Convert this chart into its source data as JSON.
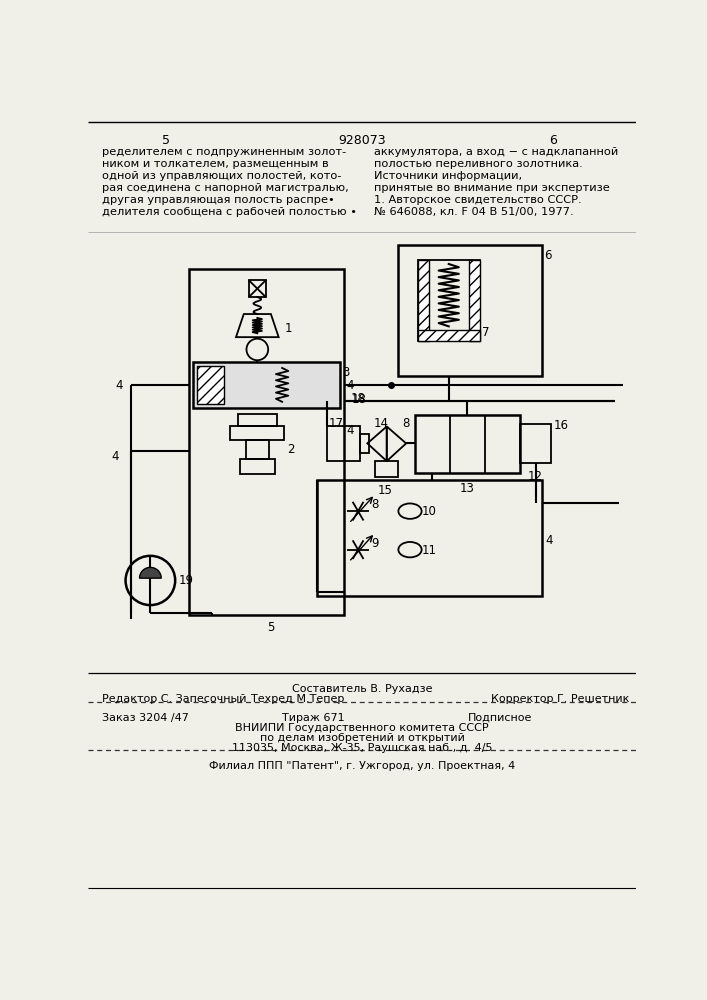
{
  "bg_color": "#f0efe8",
  "page_num_left": "5",
  "page_num_center": "928073",
  "page_num_right": "6",
  "col1": [
    "ределителем с подпружиненным золот-",
    "ником и толкателем, размещенным в",
    "одной из управляющих полостей, кото-",
    "рая соединена с напорной магистралью,",
    "другая управляющая полость распре•",
    "делителя сообщена с рабочей полостью •"
  ],
  "col2": [
    "аккумулятора, а вход − с надклапанной",
    "полостью переливного золотника.",
    "Источники информации,",
    "принятые во внимание при экспертизе",
    "1. Авторское свидетельство СССР.",
    "№ 646088, кл. F 04 B 51/00, 1977."
  ],
  "f_redaktor": "Редактор С. Запесочный",
  "f_sostavitel": "Составитель В. Рухадзе",
  "f_tekhred": "Техред М.Тепер",
  "f_korrektor": "Корректор Г. Решетник",
  "f_zakaz": "Заказ 3204 /47",
  "f_tirazh": "Тираж 671",
  "f_podpisnoe": "Подписное",
  "f_vnipi": "ВНИИПИ Государственного комитета СССР",
  "f_po_delam": "по делам изобретений и открытий",
  "f_address": "113035, Москва, Ж-35, Раушская наб., д. 4/5",
  "f_filial": "Филиал ППП \"Патент\", г. Ужгород, ул. Проектная, 4"
}
